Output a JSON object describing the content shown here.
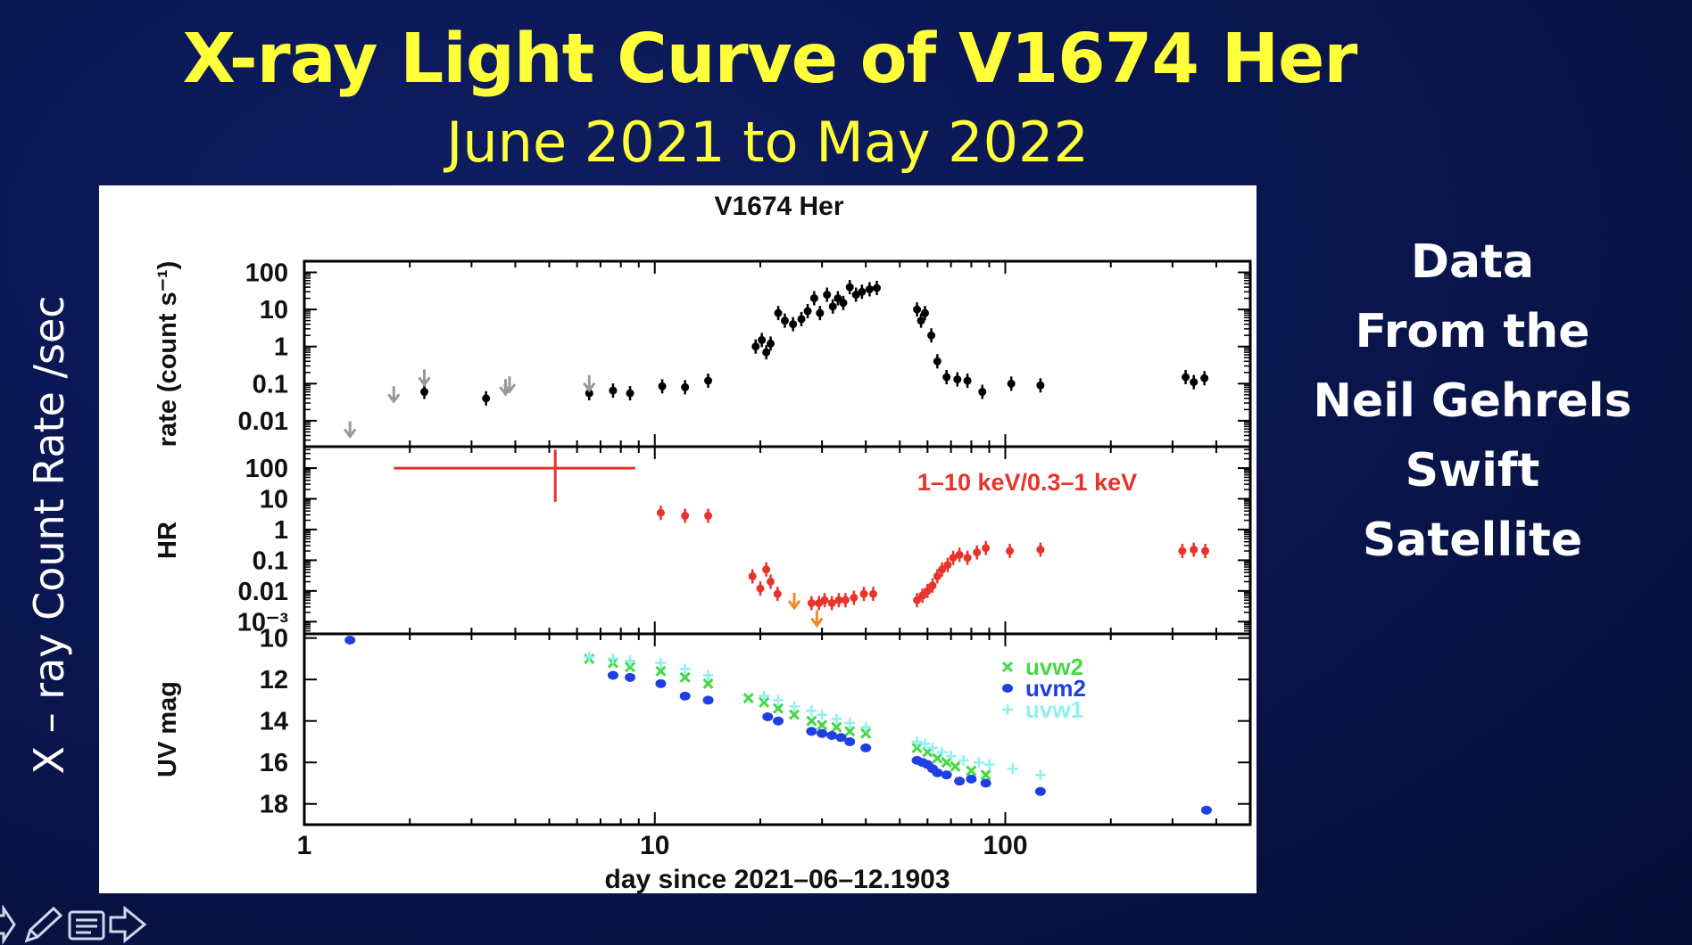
{
  "slide": {
    "title": "X-ray Light Curve of V1674 Her",
    "subtitle": "June 2021 to May 2022",
    "side_label": "X – ray  Count Rate /sec",
    "right_text": [
      "Data",
      "From the",
      "Neil Gehrels",
      "Swift",
      "Satellite"
    ],
    "colors": {
      "background": "#0a1650",
      "title": "#ffff3a",
      "text": "#ffffff"
    }
  },
  "toolbar": {
    "icons": [
      "back-arrow-icon",
      "pen-icon",
      "notes-icon",
      "forward-arrow-icon"
    ]
  },
  "chart_data": {
    "type": "scatter",
    "title": "V1674 Her",
    "xlabel": "day since 2021–06–12.1903",
    "xscale": "log",
    "xlim": [
      1,
      500
    ],
    "xticks": [
      "1",
      "10",
      "100"
    ],
    "panels": [
      {
        "id": "rate",
        "ylabel": "rate (count s⁻¹)",
        "yscale": "log",
        "ylim": [
          0.002,
          200
        ],
        "yticks": [
          "100",
          "10",
          "1",
          "0.1",
          "0.01"
        ],
        "series": [
          {
            "kind": "detection",
            "color": "#000000",
            "x": [
              2.2,
              3.3,
              6.5,
              7.6,
              8.5,
              10.5,
              12.2,
              14.2,
              19.4,
              20.2,
              20.8,
              21.4,
              22.5,
              23.5,
              24.8,
              26.2,
              27.3,
              28.5,
              29.6,
              31.0,
              32.2,
              33.3,
              34.5,
              36.0,
              37.5,
              39.0,
              41.0,
              43.0,
              56.0,
              57.5,
              59.0,
              61.5,
              64.0,
              68.0,
              73.0,
              78.0,
              86.0,
              104.0,
              126.0,
              327.0,
              345.0,
              370.0
            ],
            "y": [
              0.06,
              0.04,
              0.055,
              0.065,
              0.055,
              0.085,
              0.08,
              0.12,
              1.0,
              1.5,
              0.7,
              1.2,
              8.0,
              5.0,
              4.0,
              5.5,
              9.0,
              20.0,
              8.0,
              25.0,
              12.0,
              20.0,
              15.0,
              40.0,
              25.0,
              30.0,
              35.0,
              38.0,
              10.0,
              5.0,
              8.0,
              2.0,
              0.4,
              0.15,
              0.13,
              0.12,
              0.06,
              0.1,
              0.09,
              0.15,
              0.11,
              0.14
            ]
          },
          {
            "kind": "upper-limit",
            "color": "#999999",
            "x": [
              1.35,
              1.8,
              2.2,
              3.75,
              3.85,
              6.5
            ],
            "y": [
              0.004,
              0.035,
              0.1,
              0.055,
              0.065,
              0.07
            ]
          }
        ]
      },
      {
        "id": "hr",
        "ylabel": "HR",
        "yscale": "log",
        "ylim": [
          0.0004,
          500
        ],
        "yticks": [
          "100",
          "10",
          "1",
          "0.1",
          "0.01",
          "10⁻³"
        ],
        "annotation": "1–10 keV/0.3–1 keV",
        "series": [
          {
            "kind": "detection",
            "color": "#e8332a",
            "x": [
              5.2,
              10.4,
              12.2,
              14.2,
              19.0,
              20.0,
              20.8,
              21.4,
              22.4,
              28.0,
              29.4,
              30.5,
              32.0,
              33.5,
              35.0,
              37.0,
              39.5,
              42.0,
              56.0,
              58.0,
              60.0,
              62.0,
              64.0,
              66.0,
              68.5,
              71.0,
              74.0,
              78.0,
              83.0,
              88.0,
              103.0,
              126.0,
              320.0,
              345.0,
              372.0
            ],
            "y": [
              100.0,
              3.5,
              2.8,
              2.8,
              0.03,
              0.012,
              0.05,
              0.02,
              0.008,
              0.004,
              0.004,
              0.005,
              0.004,
              0.005,
              0.005,
              0.006,
              0.008,
              0.008,
              0.005,
              0.007,
              0.01,
              0.015,
              0.03,
              0.05,
              0.07,
              0.12,
              0.15,
              0.12,
              0.18,
              0.25,
              0.2,
              0.22,
              0.2,
              0.22,
              0.2
            ]
          },
          {
            "kind": "upper-limit",
            "color": "#f08a2a",
            "x": [
              25.0,
              29.0
            ],
            "y": [
              0.003,
              0.0008
            ]
          }
        ]
      },
      {
        "id": "uv",
        "ylabel": "UV mag",
        "yscale": "linear",
        "ylim": [
          19,
          9.8
        ],
        "yticks": [
          "10",
          "12",
          "14",
          "16",
          "18"
        ],
        "series": [
          {
            "name": "uvw2",
            "color": "#44d944",
            "marker": "x",
            "x": [
              6.5,
              7.6,
              8.5,
              10.4,
              12.2,
              14.2,
              18.5,
              20.5,
              22.5,
              25.0,
              28.0,
              30.0,
              33.0,
              36.0,
              40.0,
              56.0,
              60.0,
              64.0,
              68.0,
              72.0,
              80.0,
              88.0
            ],
            "y": [
              11.0,
              11.2,
              11.4,
              11.6,
              11.9,
              12.2,
              12.9,
              13.1,
              13.4,
              13.7,
              14.0,
              14.2,
              14.3,
              14.5,
              14.6,
              15.3,
              15.5,
              15.8,
              16.0,
              16.2,
              16.4,
              16.6
            ]
          },
          {
            "name": "uvm2",
            "color": "#1f3fe0",
            "marker": "dot",
            "x": [
              1.35,
              7.6,
              8.5,
              10.4,
              12.2,
              14.2,
              21.0,
              22.5,
              28.0,
              30.0,
              32.0,
              34.0,
              36.0,
              40.0,
              56.0,
              58.0,
              60.0,
              62.0,
              64.0,
              68.0,
              74.0,
              80.0,
              88.0,
              126.0,
              375.0
            ],
            "y": [
              10.1,
              11.8,
              11.9,
              12.2,
              12.8,
              13.0,
              13.8,
              14.0,
              14.5,
              14.6,
              14.7,
              14.8,
              15.0,
              15.3,
              15.9,
              16.0,
              16.1,
              16.3,
              16.5,
              16.6,
              16.9,
              16.8,
              17.0,
              17.4,
              18.3
            ]
          },
          {
            "name": "uvw1",
            "color": "#8ff0f0",
            "marker": "plus",
            "x": [
              6.5,
              7.6,
              8.5,
              10.4,
              12.2,
              14.2,
              20.5,
              22.5,
              25.0,
              28.0,
              30.0,
              33.0,
              36.0,
              40.0,
              56.0,
              59.0,
              62.0,
              66.0,
              70.0,
              76.0,
              84.0,
              90.0,
              105.0,
              126.0
            ],
            "y": [
              10.9,
              11.0,
              11.1,
              11.2,
              11.5,
              11.8,
              12.8,
              13.0,
              13.3,
              13.5,
              13.7,
              13.9,
              14.1,
              14.3,
              15.0,
              15.1,
              15.3,
              15.5,
              15.7,
              15.9,
              16.0,
              16.1,
              16.3,
              16.6
            ]
          }
        ]
      }
    ],
    "legend": {
      "placement": "top-right",
      "panel": "uv",
      "entries": [
        "uvw2",
        "uvm2",
        "uvw1"
      ]
    }
  }
}
